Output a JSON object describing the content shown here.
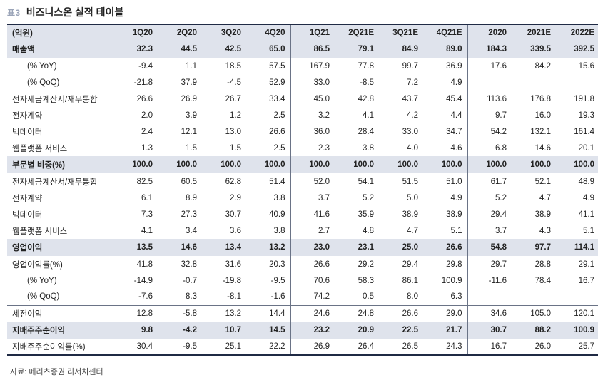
{
  "header": {
    "table_number": "표3",
    "title": "비즈니스온 실적 테이블"
  },
  "columns": {
    "unit": "(억원)",
    "periods": [
      "1Q20",
      "2Q20",
      "3Q20",
      "4Q20",
      "1Q21",
      "2Q21E",
      "3Q21E",
      "4Q21E",
      "2020",
      "2021E",
      "2022E"
    ]
  },
  "rows": [
    {
      "label": "매출액",
      "style": "hl",
      "values": [
        "32.3",
        "44.5",
        "42.5",
        "65.0",
        "86.5",
        "79.1",
        "84.9",
        "89.0",
        "184.3",
        "339.5",
        "392.5"
      ]
    },
    {
      "label": "(% YoY)",
      "style": "ind",
      "values": [
        "-9.4",
        "1.1",
        "18.5",
        "57.5",
        "167.9",
        "77.8",
        "99.7",
        "36.9",
        "17.6",
        "84.2",
        "15.6"
      ]
    },
    {
      "label": "(% QoQ)",
      "style": "ind",
      "values": [
        "-21.8",
        "37.9",
        "-4.5",
        "52.9",
        "33.0",
        "-8.5",
        "7.2",
        "4.9",
        "",
        "",
        ""
      ]
    },
    {
      "label": "전자세금계산서/재무통합",
      "style": "",
      "values": [
        "26.6",
        "26.9",
        "26.7",
        "33.4",
        "45.0",
        "42.8",
        "43.7",
        "45.4",
        "113.6",
        "176.8",
        "191.8"
      ]
    },
    {
      "label": "전자계약",
      "style": "",
      "values": [
        "2.0",
        "3.9",
        "1.2",
        "2.5",
        "3.2",
        "4.1",
        "4.2",
        "4.4",
        "9.7",
        "16.0",
        "19.3"
      ]
    },
    {
      "label": "빅데이터",
      "style": "",
      "values": [
        "2.4",
        "12.1",
        "13.0",
        "26.6",
        "36.0",
        "28.4",
        "33.0",
        "34.7",
        "54.2",
        "132.1",
        "161.4"
      ]
    },
    {
      "label": "웹플랫폼 서비스",
      "style": "",
      "values": [
        "1.3",
        "1.5",
        "1.5",
        "2.5",
        "2.3",
        "3.8",
        "4.0",
        "4.6",
        "6.8",
        "14.6",
        "20.1"
      ]
    },
    {
      "label": "부문별 비중(%)",
      "style": "hl",
      "values": [
        "100.0",
        "100.0",
        "100.0",
        "100.0",
        "100.0",
        "100.0",
        "100.0",
        "100.0",
        "100.0",
        "100.0",
        "100.0"
      ]
    },
    {
      "label": "전자세금계산서/재무통합",
      "style": "",
      "values": [
        "82.5",
        "60.5",
        "62.8",
        "51.4",
        "52.0",
        "54.1",
        "51.5",
        "51.0",
        "61.7",
        "52.1",
        "48.9"
      ]
    },
    {
      "label": "전자계약",
      "style": "",
      "values": [
        "6.1",
        "8.9",
        "2.9",
        "3.8",
        "3.7",
        "5.2",
        "5.0",
        "4.9",
        "5.2",
        "4.7",
        "4.9"
      ]
    },
    {
      "label": "빅데이터",
      "style": "",
      "values": [
        "7.3",
        "27.3",
        "30.7",
        "40.9",
        "41.6",
        "35.9",
        "38.9",
        "38.9",
        "29.4",
        "38.9",
        "41.1"
      ]
    },
    {
      "label": "웹플랫폼 서비스",
      "style": "",
      "values": [
        "4.1",
        "3.4",
        "3.6",
        "3.8",
        "2.7",
        "4.8",
        "4.7",
        "5.1",
        "3.7",
        "4.3",
        "5.1"
      ]
    },
    {
      "label": "영업이익",
      "style": "hl",
      "values": [
        "13.5",
        "14.6",
        "13.4",
        "13.2",
        "23.0",
        "23.1",
        "25.0",
        "26.6",
        "54.8",
        "97.7",
        "114.1"
      ]
    },
    {
      "label": "영업이익률(%)",
      "style": "",
      "values": [
        "41.8",
        "32.8",
        "31.6",
        "20.3",
        "26.6",
        "29.2",
        "29.4",
        "29.8",
        "29.7",
        "28.8",
        "29.1"
      ]
    },
    {
      "label": "(% YoY)",
      "style": "ind",
      "values": [
        "-14.9",
        "-0.7",
        "-19.8",
        "-9.5",
        "70.6",
        "58.3",
        "86.1",
        "100.9",
        "-11.6",
        "78.4",
        "16.7"
      ]
    },
    {
      "label": "(% QoQ)",
      "style": "ind",
      "values": [
        "-7.6",
        "8.3",
        "-8.1",
        "-1.6",
        "74.2",
        "0.5",
        "8.0",
        "6.3",
        "",
        "",
        ""
      ]
    },
    {
      "label": "세전이익",
      "style": "sep",
      "values": [
        "12.8",
        "-5.8",
        "13.2",
        "14.4",
        "24.6",
        "24.8",
        "26.6",
        "29.0",
        "34.6",
        "105.0",
        "120.1"
      ]
    },
    {
      "label": "지배주주순이익",
      "style": "hl",
      "values": [
        "9.8",
        "-4.2",
        "10.7",
        "14.5",
        "23.2",
        "20.9",
        "22.5",
        "21.7",
        "30.7",
        "88.2",
        "100.9"
      ]
    },
    {
      "label": "지배주주순이익률(%)",
      "style": "last",
      "values": [
        "30.4",
        "-9.5",
        "25.1",
        "22.2",
        "26.9",
        "26.4",
        "26.5",
        "24.3",
        "16.7",
        "26.0",
        "25.7"
      ]
    }
  ],
  "footer": {
    "source": "자료: 메리츠증권 리서치센터"
  }
}
